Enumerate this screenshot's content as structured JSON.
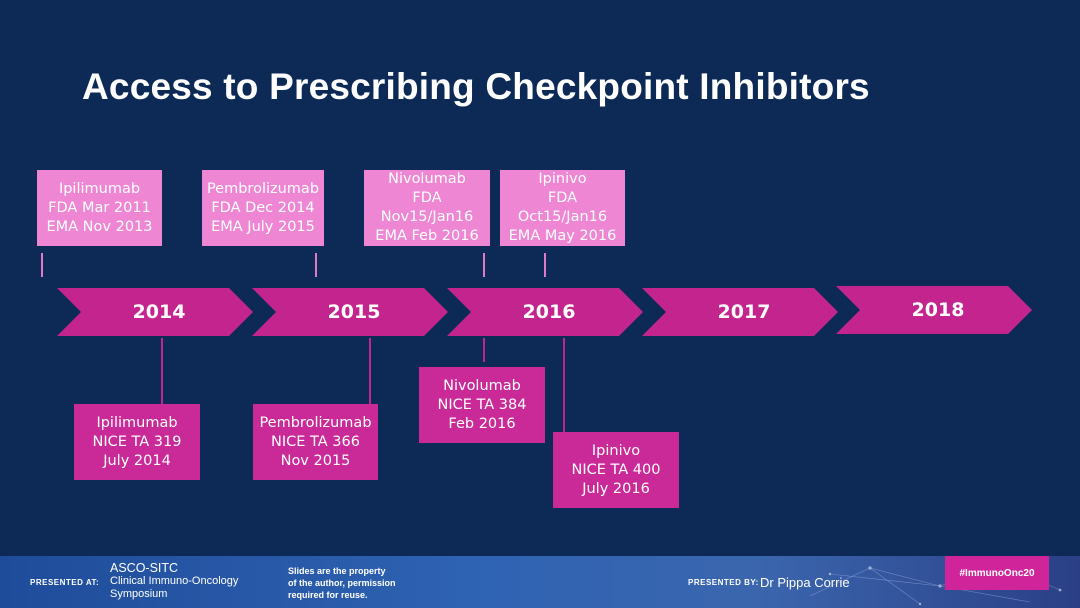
{
  "title": "Access to Prescribing Checkpoint Inhibitors",
  "colors": {
    "background": "#0d2a56",
    "arrow": "#c3248e",
    "top_box": "#ee86d4",
    "bottom_box": "#c92a98"
  },
  "timeline": {
    "years": [
      "2014",
      "2015",
      "2016",
      "2017",
      "2018"
    ],
    "top_boxes": [
      {
        "lines": [
          "Ipilimumab",
          "FDA Mar 2011",
          "EMA Nov 2013"
        ]
      },
      {
        "lines": [
          "Pembrolizumab",
          "FDA Dec 2014",
          "EMA July 2015"
        ]
      },
      {
        "lines": [
          "Nivolumab",
          "FDA",
          "Nov15/Jan16",
          "EMA Feb 2016"
        ]
      },
      {
        "lines": [
          "Ipinivo",
          "FDA",
          "Oct15/Jan16",
          "EMA May 2016"
        ]
      }
    ],
    "bottom_boxes": [
      {
        "lines": [
          "Ipilimumab",
          "NICE TA 319",
          "July 2014"
        ]
      },
      {
        "lines": [
          "Pembrolizumab",
          "NICE TA 366",
          "Nov 2015"
        ]
      },
      {
        "lines": [
          "Nivolumab",
          "NICE TA 384",
          "Feb 2016"
        ]
      },
      {
        "lines": [
          "Ipinivo",
          "NICE TA 400",
          "July 2016"
        ]
      }
    ]
  },
  "footer": {
    "presented_at_label": "PRESENTED AT:",
    "org_name": "ASCO-SITC",
    "org_line2": "Clinical Immuno-Oncology",
    "org_line3": "Symposium",
    "note_line1": "Slides are the property",
    "note_line2": "of the author, permission",
    "note_line3": "required for reuse.",
    "presented_by_label": "PRESENTED BY:",
    "presenter": "Dr Pippa Corrie",
    "hashtag": "#ImmunoOnc20"
  }
}
